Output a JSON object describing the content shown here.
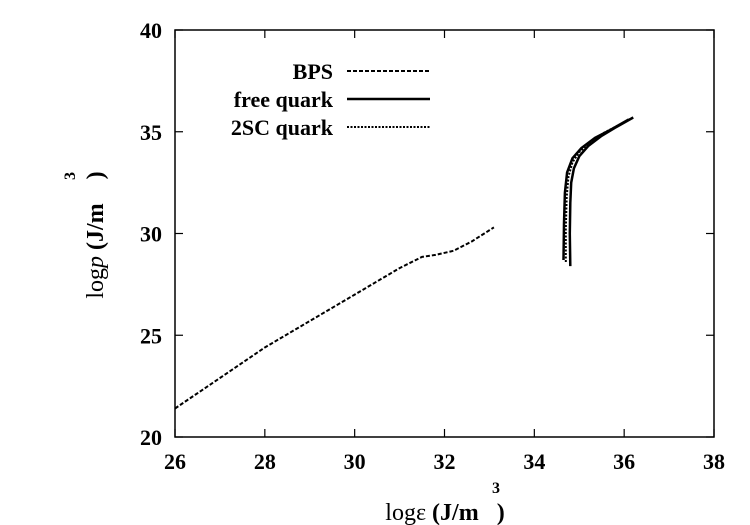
{
  "chart_data": {
    "type": "line",
    "title": "",
    "xlabel": {
      "prefix": "log",
      "symbol": "ε",
      "unit": " (J/m",
      "exp": "3",
      "close": ")"
    },
    "ylabel": {
      "prefix": "log",
      "symbol": "p",
      "unit": " (J/m",
      "exp": "3",
      "close": " )"
    },
    "xlim": [
      26,
      38
    ],
    "ylim": [
      20,
      40
    ],
    "xticks": [
      26,
      28,
      30,
      32,
      34,
      36,
      38
    ],
    "yticks": [
      20,
      25,
      30,
      35,
      40
    ],
    "grid": false,
    "legend_position": "top-left",
    "series": [
      {
        "name": "BPS",
        "style": "dashed",
        "x": [
          26.0,
          27.0,
          28.0,
          29.0,
          30.0,
          31.0,
          31.5,
          31.8,
          32.2,
          32.6,
          33.1
        ],
        "y": [
          21.4,
          22.9,
          24.4,
          25.7,
          27.0,
          28.3,
          28.85,
          28.95,
          29.15,
          29.6,
          30.3
        ]
      },
      {
        "name": "free quark",
        "style": "solid",
        "x": [
          34.8,
          34.79,
          34.8,
          34.82,
          34.88,
          35.0,
          35.2,
          35.5,
          35.8,
          36.2
        ],
        "y": [
          28.4,
          30.0,
          31.5,
          32.5,
          33.2,
          33.8,
          34.3,
          34.8,
          35.2,
          35.7
        ],
        "x2": [
          34.65,
          34.66,
          34.68,
          34.73,
          34.85,
          35.05,
          35.35,
          35.7,
          36.1
        ],
        "y2": [
          28.7,
          30.5,
          32.0,
          33.0,
          33.7,
          34.2,
          34.7,
          35.1,
          35.6
        ]
      },
      {
        "name": "2SC quark",
        "style": "dotted",
        "x": [
          34.7,
          34.7,
          34.72,
          34.76,
          34.85,
          35.0,
          35.25,
          35.55,
          35.9,
          36.2
        ],
        "y": [
          28.6,
          30.2,
          31.8,
          32.8,
          33.5,
          34.0,
          34.5,
          34.95,
          35.35,
          35.7
        ]
      }
    ]
  }
}
